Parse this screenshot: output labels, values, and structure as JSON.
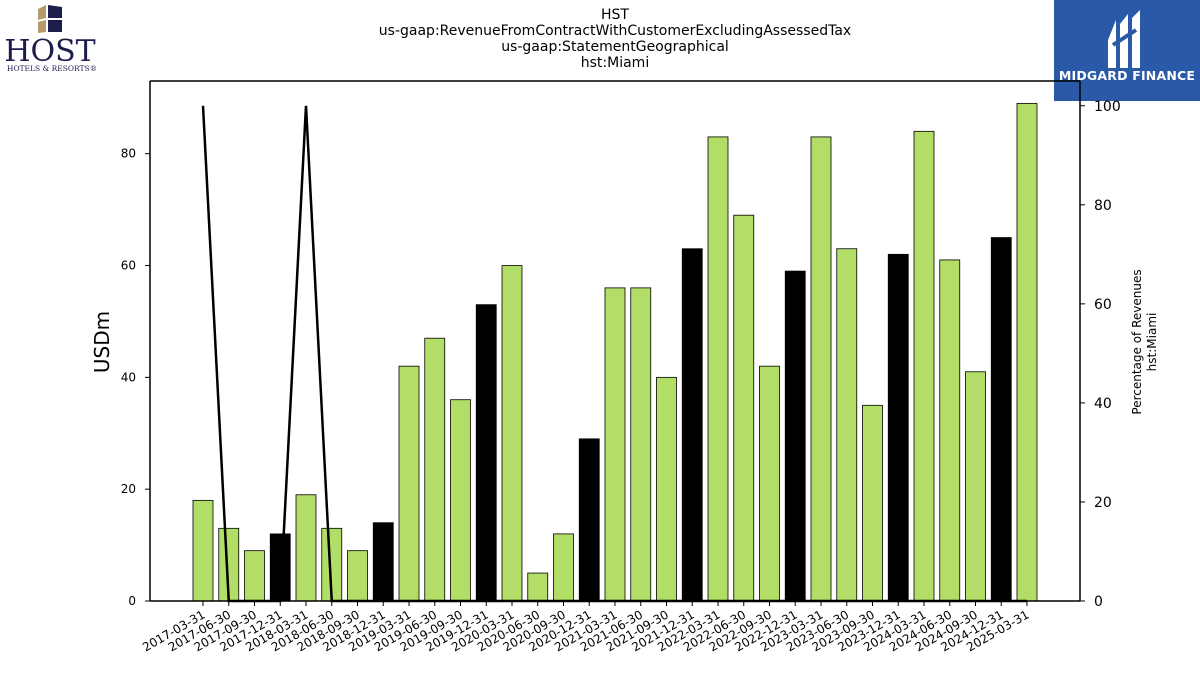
{
  "header": {
    "title_lines": [
      "HST",
      "us-gaap:RevenueFromContractWithCustomerExcludingAssessedTax",
      "us-gaap:StatementGeographical",
      "hst:Miami"
    ]
  },
  "logos": {
    "host": {
      "name": "HOST",
      "tagline": "HOTELS & RESORTS®",
      "accent": "#b49b6a",
      "navy": "#1b1d4c"
    },
    "midgard": {
      "name": "MIDGARD FINANCE",
      "background": "#2a5aa7"
    }
  },
  "colors": {
    "bar_default": "#b2dd67",
    "bar_q4": "#000000",
    "line": "#000000"
  },
  "chart_data": {
    "type": "bar",
    "categories": [
      "2017-03-31",
      "2017-06-30",
      "2017-09-30",
      "2017-12-31",
      "2018-03-31",
      "2018-06-30",
      "2018-09-30",
      "2018-12-31",
      "2019-03-31",
      "2019-06-30",
      "2019-09-30",
      "2019-12-31",
      "2020-03-31",
      "2020-06-30",
      "2020-09-30",
      "2020-12-31",
      "2021-03-31",
      "2021-06-30",
      "2021-09-30",
      "2021-12-31",
      "2022-03-31",
      "2022-06-30",
      "2022-09-30",
      "2022-12-31",
      "2023-03-31",
      "2023-06-30",
      "2023-09-30",
      "2023-12-31",
      "2024-03-31",
      "2024-06-30",
      "2024-09-30",
      "2024-12-31",
      "2025-03-31"
    ],
    "values": [
      18,
      13,
      9,
      12,
      19,
      13,
      9,
      14,
      42,
      47,
      36,
      53,
      60,
      5,
      12,
      29,
      56,
      56,
      40,
      63,
      83,
      69,
      42,
      59,
      83,
      63,
      35,
      62,
      84,
      61,
      41,
      65,
      89
    ],
    "ylabel": "USDm",
    "ylim": [
      0,
      93
    ],
    "yticks": [
      0,
      20,
      40,
      60,
      80
    ],
    "secondary_axis": {
      "label_lines": [
        "Percentage of Revenues",
        "hst:Miami"
      ],
      "ylim": [
        0,
        105
      ],
      "yticks": [
        0,
        20,
        40,
        60,
        80,
        100
      ],
      "values": [
        100,
        0,
        0,
        0,
        100,
        0,
        0,
        0,
        0,
        0,
        0,
        0,
        0,
        0,
        0,
        0,
        0,
        0,
        0,
        0,
        0,
        0,
        0,
        0,
        0,
        0,
        0,
        0,
        0,
        0,
        0,
        0,
        0
      ]
    },
    "grid": false
  }
}
